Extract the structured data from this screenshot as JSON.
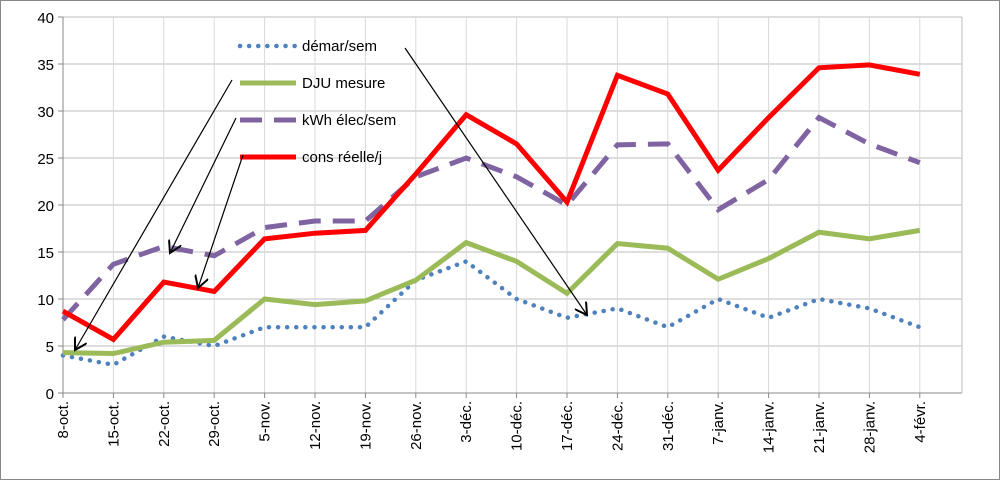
{
  "chart_data": {
    "type": "line",
    "categories": [
      "8-oct.",
      "15-oct.",
      "22-oct.",
      "29-oct.",
      "5-nov.",
      "12-nov.",
      "19-nov.",
      "26-nov.",
      "3-déc.",
      "10-déc.",
      "17-déc.",
      "24-déc.",
      "31-déc.",
      "7-janv.",
      "14-janv.",
      "21-janv.",
      "28-janv.",
      "4-févr."
    ],
    "series": [
      {
        "name": "démar/sem",
        "color": "#4f81bd",
        "line_style": "dotted",
        "values": [
          4,
          3,
          6,
          5,
          7,
          7,
          7,
          12,
          14,
          10,
          8,
          9,
          7,
          10,
          8,
          10,
          9,
          7
        ]
      },
      {
        "name": "DJU mesure",
        "color": "#9bbb59",
        "line_style": "solid",
        "values": [
          4.3,
          4.2,
          5.4,
          5.6,
          10,
          9.4,
          9.8,
          12,
          16,
          14,
          10.6,
          15.9,
          15.4,
          12.1,
          14.3,
          17.1,
          16.4,
          17.3
        ]
      },
      {
        "name": "kWh élec/sem",
        "color": "#8064a2",
        "line_style": "dashed",
        "values": [
          7.8,
          13.7,
          15.6,
          14.6,
          17.6,
          18.3,
          18.3,
          23,
          25,
          23,
          20,
          26.4,
          26.5,
          19.5,
          22.7,
          29.3,
          26.5,
          24.5
        ]
      },
      {
        "name": "cons réelle/j",
        "color": "#ff0000",
        "line_style": "solid",
        "values": [
          8.7,
          5.7,
          11.8,
          10.8,
          16.4,
          17,
          17.3,
          23.3,
          29.6,
          26.5,
          20.3,
          33.8,
          31.8,
          23.7,
          29.3,
          34.6,
          34.9,
          33.9
        ]
      }
    ],
    "ylim": [
      0,
      40
    ],
    "yticks": [
      0,
      5,
      10,
      15,
      20,
      25,
      30,
      35,
      40
    ],
    "grid": true
  }
}
